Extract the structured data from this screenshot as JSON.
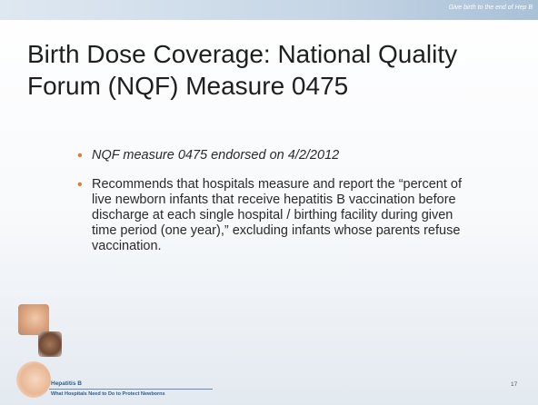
{
  "header": {
    "tagline": "Give birth to the end of Hep B"
  },
  "title": [
    "Birth Dose Coverage: National Quality",
    "Forum (NQF) Measure 0475"
  ],
  "bullets": [
    "NQF measure 0475 endorsed on 4/2/2012",
    "Recommends that hospitals measure and report the “percent of live newborn infants that receive hepatitis B vaccination before discharge at each single hospital / birthing facility during given time period (one year),” excluding infants whose parents refuse vaccination."
  ],
  "footer": {
    "brand": "Hepatitis B",
    "subtitle": "What Hospitals Need to Do to Protect Newborns",
    "page_number": 17
  }
}
